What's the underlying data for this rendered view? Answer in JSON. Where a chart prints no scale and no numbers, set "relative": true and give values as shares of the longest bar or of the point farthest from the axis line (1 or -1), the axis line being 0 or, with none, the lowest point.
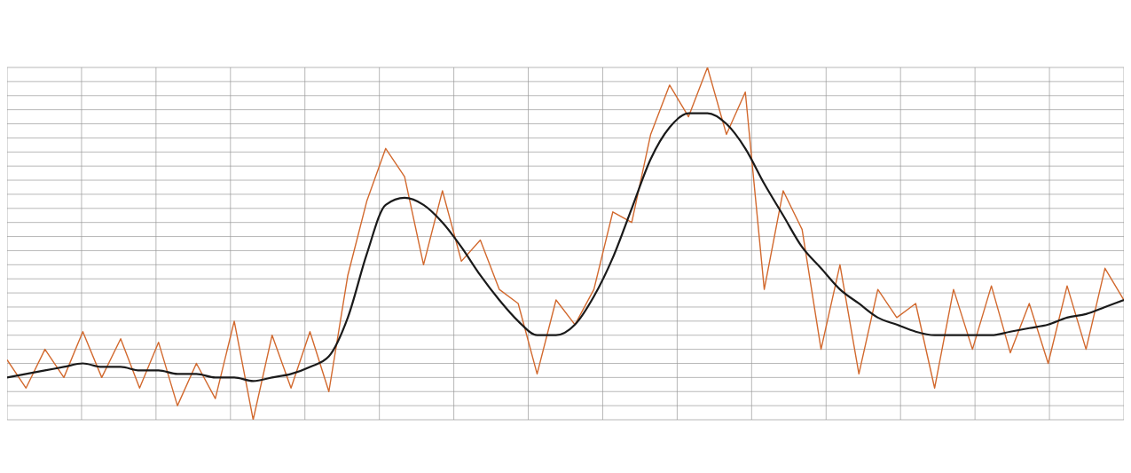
{
  "chart_data": {
    "type": "line",
    "relative": true,
    "grid": true,
    "categories": [
      null,
      null,
      null,
      null,
      null,
      null,
      null,
      null,
      null,
      null,
      null,
      null,
      null,
      null,
      null,
      null,
      null,
      null,
      null,
      null,
      null,
      null,
      null,
      null,
      null,
      null,
      null,
      null,
      null,
      null,
      null,
      null,
      null,
      null,
      null,
      null,
      null,
      null,
      null,
      null,
      null,
      null,
      null,
      null,
      null,
      null,
      null,
      null,
      null,
      null,
      null,
      null,
      null,
      null,
      null,
      null,
      null,
      null,
      null,
      null
    ],
    "series": [
      {
        "color": "#d2692e",
        "values": [
          0.17,
          0.09,
          0.2,
          0.12,
          0.25,
          0.12,
          0.23,
          0.09,
          0.22,
          0.04,
          0.16,
          0.06,
          0.28,
          0,
          0.24,
          0.09,
          0.25,
          0.08,
          0.41,
          0.62,
          0.77,
          0.69,
          0.44,
          0.65,
          0.45,
          0.51,
          0.37,
          0.33,
          0.13,
          0.34,
          0.27,
          0.37,
          0.59,
          0.56,
          0.81,
          0.95,
          0.86,
          1,
          0.81,
          0.93,
          0.37,
          0.65,
          0.54,
          0.2,
          0.44,
          0.13,
          0.37,
          0.29,
          0.33,
          0.09,
          0.37,
          0.2,
          0.38,
          0.19,
          0.33,
          0.16,
          0.38,
          0.2,
          0.43,
          0.34
        ]
      },
      {
        "color": "#1a1a1a",
        "values": [
          0.12,
          0.13,
          0.14,
          0.15,
          0.16,
          0.15,
          0.15,
          0.14,
          0.14,
          0.13,
          0.13,
          0.12,
          0.12,
          0.11,
          0.12,
          0.13,
          0.15,
          0.18,
          0.29,
          0.47,
          0.61,
          0.63,
          0.61,
          0.56,
          0.49,
          0.41,
          0.34,
          0.28,
          0.24,
          0.24,
          0.27,
          0.35,
          0.46,
          0.6,
          0.74,
          0.83,
          0.87,
          0.87,
          0.84,
          0.77,
          0.67,
          0.58,
          0.49,
          0.43,
          0.37,
          0.33,
          0.29,
          0.27,
          0.25,
          0.24,
          0.24,
          0.24,
          0.24,
          0.25,
          0.26,
          0.27,
          0.29,
          0.3,
          0.32,
          0.34
        ]
      }
    ]
  }
}
